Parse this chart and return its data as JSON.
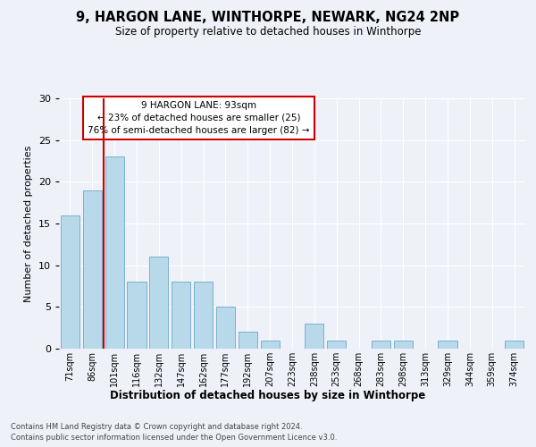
{
  "title1": "9, HARGON LANE, WINTHORPE, NEWARK, NG24 2NP",
  "title2": "Size of property relative to detached houses in Winthorpe",
  "xlabel": "Distribution of detached houses by size in Winthorpe",
  "ylabel": "Number of detached properties",
  "bar_labels": [
    "71sqm",
    "86sqm",
    "101sqm",
    "116sqm",
    "132sqm",
    "147sqm",
    "162sqm",
    "177sqm",
    "192sqm",
    "207sqm",
    "223sqm",
    "238sqm",
    "253sqm",
    "268sqm",
    "283sqm",
    "298sqm",
    "313sqm",
    "329sqm",
    "344sqm",
    "359sqm",
    "374sqm"
  ],
  "bar_heights": [
    16,
    19,
    23,
    8,
    11,
    8,
    8,
    5,
    2,
    1,
    0,
    3,
    1,
    0,
    1,
    1,
    0,
    1,
    0,
    0,
    1
  ],
  "bar_color": "#b8d9ea",
  "bar_edge_color": "#7ab0cc",
  "vline_color": "#cc0000",
  "annotation_title": "9 HARGON LANE: 93sqm",
  "annotation_line1": "← 23% of detached houses are smaller (25)",
  "annotation_line2": "76% of semi-detached houses are larger (82) →",
  "annotation_box_color": "#ffffff",
  "annotation_box_edge": "#cc0000",
  "ylim": [
    0,
    30
  ],
  "yticks": [
    0,
    5,
    10,
    15,
    20,
    25,
    30
  ],
  "footnote1": "Contains HM Land Registry data © Crown copyright and database right 2024.",
  "footnote2": "Contains public sector information licensed under the Open Government Licence v3.0.",
  "background_color": "#eef2f8"
}
